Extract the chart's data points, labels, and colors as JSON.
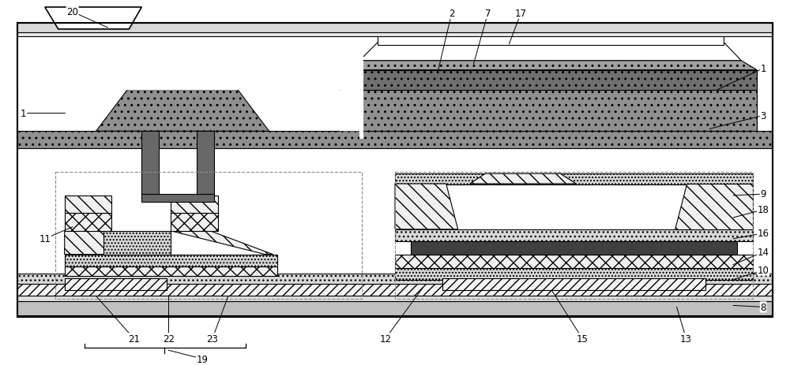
{
  "fig_width": 10.0,
  "fig_height": 4.64,
  "bg": "#ffffff",
  "black": "#000000",
  "white": "#ffffff",
  "c_substrate": "#c8c8c8",
  "c_insulator": "#e8e8e8",
  "c_gate_metal": "#888888",
  "c_gate_dark": "#606060",
  "c_dark_layer": "#404040",
  "c_dotted": "#d8d8d8",
  "c_xhatch": "#f0f0f0",
  "c_light": "#e0e0e0"
}
